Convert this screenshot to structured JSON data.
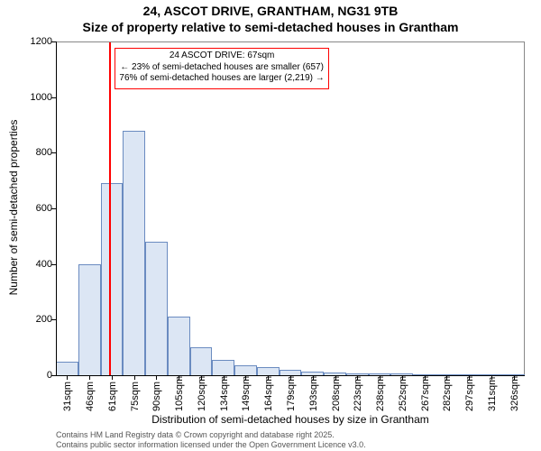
{
  "title_line1": "24, ASCOT DRIVE, GRANTHAM, NG31 9TB",
  "title_line2": "Size of property relative to semi-detached houses in Grantham",
  "title_fontsize": 14,
  "chart": {
    "type": "histogram",
    "xlabel": "Distribution of semi-detached houses by size in Grantham",
    "ylabel": "Number of semi-detached properties",
    "label_fontsize": 12,
    "ylim": [
      0,
      1200
    ],
    "ytick_step": 200,
    "yticks": [
      0,
      200,
      400,
      600,
      800,
      1000,
      1200
    ],
    "xtick_labels": [
      "31sqm",
      "46sqm",
      "61sqm",
      "75sqm",
      "90sqm",
      "105sqm",
      "120sqm",
      "134sqm",
      "149sqm",
      "164sqm",
      "179sqm",
      "193sqm",
      "208sqm",
      "223sqm",
      "238sqm",
      "252sqm",
      "267sqm",
      "282sqm",
      "297sqm",
      "311sqm",
      "326sqm"
    ],
    "bar_values": [
      50,
      400,
      690,
      880,
      480,
      210,
      100,
      55,
      35,
      30,
      18,
      12,
      10,
      8,
      6,
      5,
      4,
      3,
      2,
      2,
      2
    ],
    "bar_fill": "#dce6f4",
    "bar_stroke": "#6a8bc0",
    "background_color": "#ffffff",
    "axis_color": "#000000",
    "frame_color": "#888888",
    "marker": {
      "index": 2.4,
      "color": "#ff0000",
      "width": 2
    },
    "annotation": {
      "lines": [
        "24 ASCOT DRIVE: 67sqm",
        "← 23% of semi-detached houses are smaller (657)",
        "76% of semi-detached houses are larger (2,219) →"
      ],
      "fontsize": 10,
      "border_color": "#ff0000",
      "background": "#ffffff",
      "top_value": 1180,
      "height_value": 150
    }
  },
  "footer_line1": "Contains HM Land Registry data © Crown copyright and database right 2025.",
  "footer_line2": "Contains public sector information licensed under the Open Government Licence v3.0."
}
